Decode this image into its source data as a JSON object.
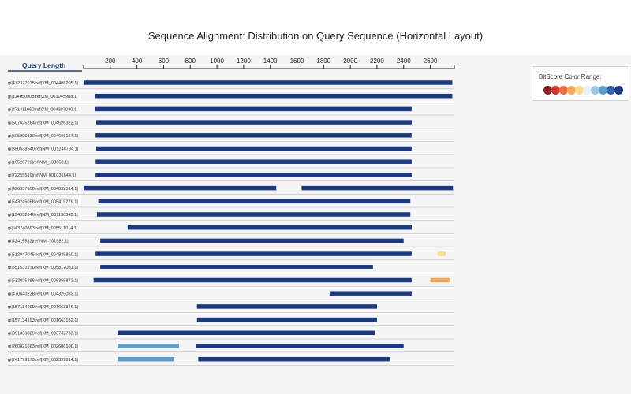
{
  "title": "Sequence Alignment: Distribution on Query Sequence (Horizontal Layout)",
  "legend": {
    "title": "BitScore Color Range:",
    "colors": [
      "#8f1f22",
      "#d7322a",
      "#f26a3d",
      "#f8a85a",
      "#fdd98a",
      "#e4f1f8",
      "#9ccbe4",
      "#5a9fcf",
      "#2f64ad",
      "#1a3a85"
    ]
  },
  "chart_data": {
    "type": "bar",
    "title": "Sequence Alignment: Distribution on Query Sequence (Horizontal Layout)",
    "xlabel": "Query Length",
    "ylabel": "",
    "xlim": [
      0,
      2780
    ],
    "xticks": [
      200,
      400,
      600,
      800,
      1000,
      1200,
      1400,
      1600,
      1800,
      2000,
      2200,
      2400,
      2600
    ],
    "categories": [
      "gi|472377675|ref|XM_004408205.1|",
      "gi|114050908|ref|XM_001045988.1|",
      "gi|471411060|ref|XM_004387030.1|",
      "gi|507625264|ref|XM_004626323.1|",
      "gi|505800830|ref|XM_004608127.1|",
      "gi|350538540|ref|NM_001246794.1|",
      "gi|19526799|ref|NM_133658.1|",
      "gi|72255519|ref|NM_001031644.1|",
      "gi|426337100|ref|XM_004032514.1|",
      "gi|543245058|ref|XM_005415779.1|",
      "gi|194332646|ref|NM_001130340.1|",
      "gi|543740393|ref|XM_005511014.1|",
      "gi|42415512|ref|NM_201582.1|",
      "gi|512947045|ref|XM_004835850.1|",
      "gi|551531270|ref|XM_005817031.1|",
      "gi|532025886|ref|XM_005355873.1|",
      "gi|470640238|ref|XM_004325083.1|",
      "gi|157134999|ref|XM_001663346.1|",
      "gi|157134193|ref|XM_001663132.1|",
      "gi|391336829|ref|XM_003742733.1|",
      "gi|260821663|ref|XM_002606106.1|",
      "gi|241779173|ref|XM_002399814.1|"
    ],
    "alignments": [
      [
        {
          "start": 5,
          "end": 2765,
          "color": "#1a3a85"
        }
      ],
      [
        {
          "start": 85,
          "end": 2765,
          "color": "#1a3a85"
        }
      ],
      [
        {
          "start": 85,
          "end": 2460,
          "color": "#1a3a85"
        }
      ],
      [
        {
          "start": 95,
          "end": 2460,
          "color": "#1a3a85"
        }
      ],
      [
        {
          "start": 90,
          "end": 2460,
          "color": "#1a3a85"
        }
      ],
      [
        {
          "start": 95,
          "end": 2460,
          "color": "#1a3a85"
        }
      ],
      [
        {
          "start": 90,
          "end": 2460,
          "color": "#1a3a85"
        }
      ],
      [
        {
          "start": 90,
          "end": 2460,
          "color": "#1a3a85"
        }
      ],
      [
        {
          "start": 0,
          "end": 1445,
          "color": "#1a3a85"
        },
        {
          "start": 1635,
          "end": 2770,
          "color": "#1a3a85"
        }
      ],
      [
        {
          "start": 110,
          "end": 2450,
          "color": "#1a3a85"
        }
      ],
      [
        {
          "start": 100,
          "end": 2450,
          "color": "#1a3a85"
        }
      ],
      [
        {
          "start": 330,
          "end": 2460,
          "color": "#1a3a85"
        }
      ],
      [
        {
          "start": 125,
          "end": 2400,
          "color": "#1a3a85"
        }
      ],
      [
        {
          "start": 90,
          "end": 2460,
          "color": "#1a3a85"
        },
        {
          "start": 2655,
          "end": 2715,
          "color": "#fdd98a"
        }
      ],
      [
        {
          "start": 125,
          "end": 2170,
          "color": "#1a3a85"
        }
      ],
      [
        {
          "start": 75,
          "end": 2460,
          "color": "#1a3a85"
        },
        {
          "start": 2600,
          "end": 2750,
          "color": "#f8a85a"
        }
      ],
      [
        {
          "start": 1845,
          "end": 2460,
          "color": "#1a3a85"
        }
      ],
      [
        {
          "start": 850,
          "end": 2200,
          "color": "#1a3a85"
        }
      ],
      [
        {
          "start": 850,
          "end": 2200,
          "color": "#1a3a85"
        }
      ],
      [
        {
          "start": 255,
          "end": 2185,
          "color": "#1a3a85"
        }
      ],
      [
        {
          "start": 255,
          "end": 715,
          "color": "#5aa0cc"
        },
        {
          "start": 840,
          "end": 2400,
          "color": "#1a3a85"
        }
      ],
      [
        {
          "start": 255,
          "end": 680,
          "color": "#5aa0cc"
        },
        {
          "start": 860,
          "end": 2300,
          "color": "#1a3a85"
        }
      ]
    ]
  }
}
